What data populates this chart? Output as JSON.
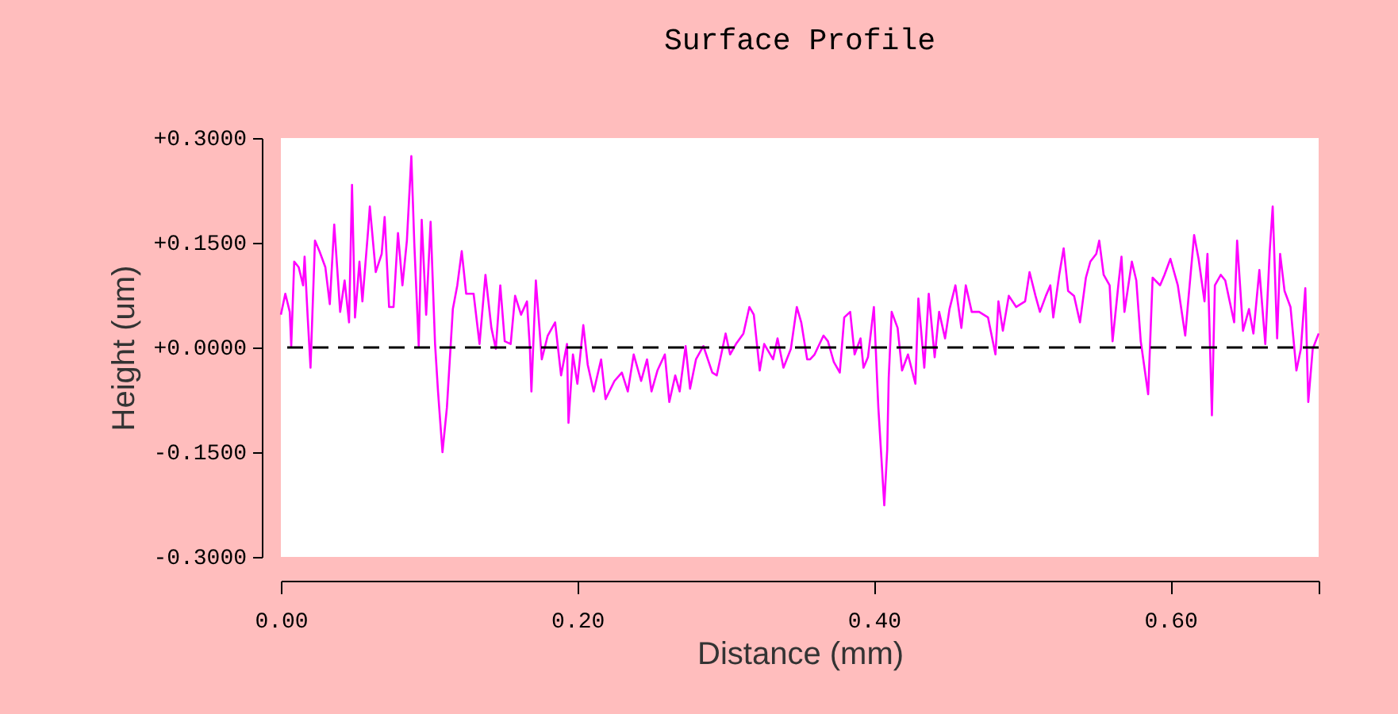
{
  "chart_data": {
    "type": "line",
    "title": "Surface Profile",
    "xlabel": "Distance (mm)",
    "ylabel": "Height (um)",
    "xlim": [
      0,
      0.7
    ],
    "ylim": [
      -0.3,
      0.3
    ],
    "xticks": [
      {
        "value": 0,
        "label": "0.00"
      },
      {
        "value": 0.2,
        "label": "0.20"
      },
      {
        "value": 0.4,
        "label": "0.40"
      },
      {
        "value": 0.6,
        "label": "0.60"
      },
      {
        "value": 0.7,
        "label": null
      }
    ],
    "yticks": [
      {
        "value": -0.3,
        "label": "-0.3000"
      },
      {
        "value": -0.15,
        "label": "-0.1500"
      },
      {
        "value": 0,
        "label": "+0.0000"
      },
      {
        "value": 0.15,
        "label": "+0.1500"
      },
      {
        "value": 0.3,
        "label": "+0.3000"
      }
    ],
    "grid": false,
    "marker": "none",
    "ref_lines": [
      {
        "axis": "y",
        "value": 0,
        "label": null,
        "color": "#000000",
        "line_style": "dashed"
      }
    ],
    "series": [
      {
        "color": "#ff00ff",
        "line_style": "solid",
        "x": [
          0.0,
          0.003,
          0.006,
          0.007,
          0.009,
          0.012,
          0.015,
          0.016,
          0.018,
          0.02,
          0.023,
          0.026,
          0.03,
          0.033,
          0.036,
          0.04,
          0.043,
          0.046,
          0.048,
          0.05,
          0.053,
          0.055,
          0.059,
          0.06,
          0.064,
          0.068,
          0.07,
          0.073,
          0.076,
          0.079,
          0.082,
          0.085,
          0.088,
          0.09,
          0.093,
          0.095,
          0.098,
          0.101,
          0.104,
          0.106,
          0.109,
          0.112,
          0.116,
          0.119,
          0.122,
          0.125,
          0.13,
          0.134,
          0.138,
          0.142,
          0.145,
          0.148,
          0.151,
          0.155,
          0.158,
          0.162,
          0.166,
          0.168,
          0.169,
          0.172,
          0.176,
          0.18,
          0.185,
          0.189,
          0.193,
          0.194,
          0.197,
          0.2,
          0.204,
          0.207,
          0.211,
          0.216,
          0.219,
          0.225,
          0.23,
          0.234,
          0.238,
          0.243,
          0.247,
          0.25,
          0.254,
          0.259,
          0.262,
          0.266,
          0.269,
          0.273,
          0.276,
          0.28,
          0.285,
          0.291,
          0.294,
          0.3,
          0.303,
          0.307,
          0.312,
          0.316,
          0.319,
          0.323,
          0.326,
          0.332,
          0.335,
          0.339,
          0.344,
          0.348,
          0.351,
          0.355,
          0.357,
          0.36,
          0.366,
          0.369,
          0.373,
          0.377,
          0.38,
          0.384,
          0.387,
          0.391,
          0.393,
          0.396,
          0.4,
          0.403,
          0.407,
          0.409,
          0.41,
          0.412,
          0.416,
          0.419,
          0.423,
          0.428,
          0.43,
          0.434,
          0.437,
          0.441,
          0.444,
          0.448,
          0.451,
          0.455,
          0.459,
          0.462,
          0.466,
          0.471,
          0.477,
          0.482,
          0.484,
          0.487,
          0.491,
          0.496,
          0.502,
          0.505,
          0.509,
          0.512,
          0.516,
          0.519,
          0.521,
          0.525,
          0.528,
          0.531,
          0.535,
          0.539,
          0.543,
          0.546,
          0.55,
          0.552,
          0.555,
          0.559,
          0.561,
          0.565,
          0.567,
          0.569,
          0.574,
          0.577,
          0.58,
          0.585,
          0.588,
          0.593,
          0.596,
          0.6,
          0.605,
          0.61,
          0.612,
          0.616,
          0.619,
          0.623,
          0.625,
          0.628,
          0.63,
          0.634,
          0.637,
          0.64,
          0.643,
          0.645,
          0.649,
          0.653,
          0.656,
          0.66,
          0.664,
          0.667,
          0.669,
          0.672,
          0.674,
          0.677,
          0.681,
          0.685,
          0.688,
          0.691,
          0.693,
          0.696,
          0.7
        ],
        "values": [
          0.047,
          0.077,
          0.051,
          0.002,
          0.123,
          0.115,
          0.089,
          0.13,
          0.047,
          -0.029,
          0.153,
          0.138,
          0.115,
          0.062,
          0.176,
          0.051,
          0.096,
          0.036,
          0.233,
          0.043,
          0.123,
          0.066,
          0.172,
          0.202,
          0.108,
          0.134,
          0.187,
          0.058,
          0.058,
          0.164,
          0.089,
          0.153,
          0.274,
          0.149,
          0.002,
          0.183,
          0.047,
          0.18,
          0.005,
          -0.063,
          -0.15,
          -0.086,
          0.055,
          0.089,
          0.138,
          0.077,
          0.077,
          0.005,
          0.104,
          0.028,
          -0.002,
          0.089,
          0.009,
          0.005,
          0.074,
          0.047,
          0.066,
          -0.002,
          -0.063,
          0.096,
          -0.017,
          0.017,
          0.036,
          -0.04,
          0.005,
          -0.108,
          -0.01,
          -0.052,
          0.032,
          -0.025,
          -0.063,
          -0.017,
          -0.074,
          -0.048,
          -0.036,
          -0.063,
          -0.01,
          -0.048,
          -0.017,
          -0.063,
          -0.033,
          -0.01,
          -0.078,
          -0.04,
          -0.063,
          0.002,
          -0.059,
          -0.017,
          0.002,
          -0.036,
          -0.04,
          0.02,
          -0.01,
          0.005,
          0.02,
          0.058,
          0.047,
          -0.033,
          0.005,
          -0.017,
          0.013,
          -0.029,
          -0.002,
          0.058,
          0.036,
          -0.017,
          -0.017,
          -0.01,
          0.017,
          0.009,
          -0.021,
          -0.036,
          0.043,
          0.051,
          -0.01,
          0.013,
          -0.029,
          -0.014,
          0.058,
          -0.086,
          -0.226,
          -0.146,
          -0.044,
          0.051,
          0.028,
          -0.033,
          -0.01,
          -0.052,
          0.07,
          -0.029,
          0.077,
          -0.014,
          0.051,
          0.013,
          0.055,
          0.089,
          0.028,
          0.089,
          0.051,
          0.051,
          0.043,
          -0.01,
          0.066,
          0.024,
          0.074,
          0.058,
          0.066,
          0.108,
          0.074,
          0.051,
          0.074,
          0.089,
          0.043,
          0.104,
          0.142,
          0.081,
          0.074,
          0.036,
          0.1,
          0.123,
          0.134,
          0.153,
          0.104,
          0.089,
          0.009,
          0.092,
          0.13,
          0.051,
          0.123,
          0.096,
          0.009,
          -0.067,
          0.1,
          0.089,
          0.104,
          0.127,
          0.089,
          0.017,
          0.066,
          0.161,
          0.127,
          0.066,
          0.134,
          -0.097,
          0.089,
          0.104,
          0.096,
          0.066,
          0.036,
          0.153,
          0.024,
          0.055,
          0.02,
          0.111,
          0.005,
          0.138,
          0.202,
          0.013,
          0.134,
          0.081,
          0.058,
          -0.033,
          -0.002,
          0.085,
          -0.078,
          -0.002,
          0.02
        ]
      }
    ]
  }
}
